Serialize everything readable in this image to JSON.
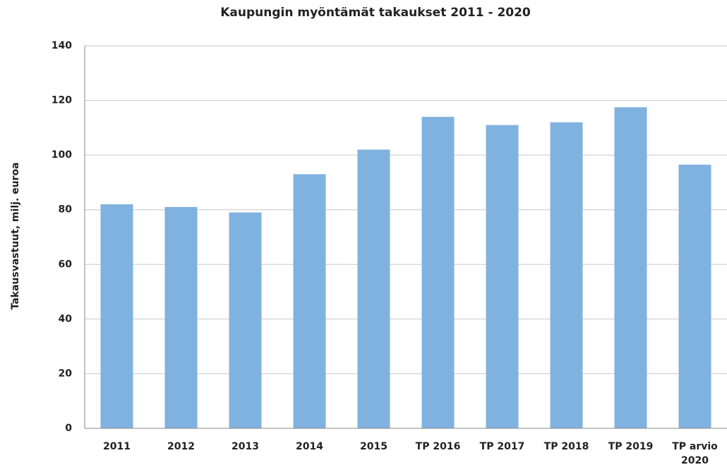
{
  "chart_data": {
    "type": "bar",
    "title": "Kaupungin myöntämät takaukset 2011 - 2020",
    "y_label": "Takausvastuut, milj. euroa",
    "categories": [
      "2011",
      "2012",
      "2013",
      "2014",
      "2015",
      "TP 2016",
      "TP 2017",
      "TP 2018",
      "TP 2019",
      "TP arvio 2020"
    ],
    "values": [
      82,
      81,
      79,
      93,
      102,
      114,
      111,
      112,
      117.5,
      96.5
    ],
    "color": "#80b2df",
    "ylim": [
      0,
      140
    ],
    "yticks": [
      0,
      20,
      40,
      60,
      80,
      100,
      120,
      140
    ],
    "grid": true
  }
}
